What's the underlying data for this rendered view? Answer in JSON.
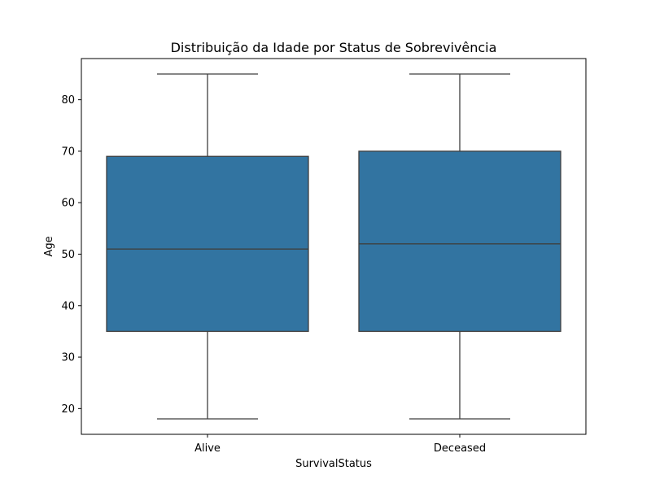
{
  "chart_data": {
    "type": "boxplot",
    "title": "Distribuição da Idade por Status de Sobrevivência",
    "xlabel": "SurvivalStatus",
    "ylabel": "Age",
    "ylim": [
      15,
      88
    ],
    "yticks": [
      20,
      30,
      40,
      50,
      60,
      70,
      80
    ],
    "grid": false,
    "box_color": "#3274a1",
    "line_color": "#3f3f3f",
    "categories": [
      "Alive",
      "Deceased"
    ],
    "boxes": [
      {
        "category": "Alive",
        "min": 18,
        "q1": 35,
        "median": 51,
        "q3": 69,
        "max": 85
      },
      {
        "category": "Deceased",
        "min": 18,
        "q1": 35,
        "median": 52,
        "q3": 70,
        "max": 85
      }
    ]
  }
}
